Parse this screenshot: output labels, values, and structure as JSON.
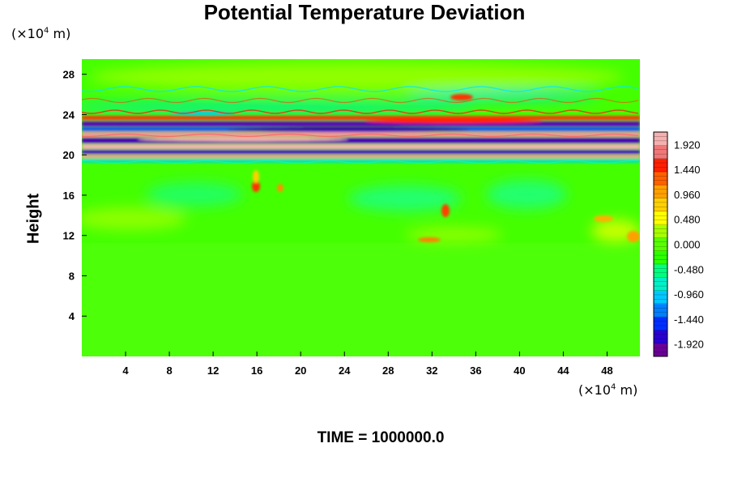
{
  "chart_data": {
    "type": "heatmap",
    "title": "Potential Temperature Deviation",
    "ylabel": "Height",
    "xlabel": "",
    "y_unit": {
      "pre": "(×10",
      "exp": "4",
      "post": " m)"
    },
    "x_unit": {
      "pre": "(×10",
      "exp": "4",
      "post": " m)"
    },
    "x_ticks": [
      "4",
      "8",
      "12",
      "16",
      "20",
      "24",
      "28",
      "32",
      "36",
      "40",
      "44",
      "48"
    ],
    "y_ticks": [
      "4",
      "8",
      "12",
      "16",
      "20",
      "24",
      "28"
    ],
    "xlim": [
      0,
      51
    ],
    "ylim": [
      0,
      29.5
    ],
    "colorbar": {
      "ticks": [
        "1.920",
        "1.440",
        "0.960",
        "0.480",
        "0.000",
        "-0.480",
        "-0.960",
        "-1.440",
        "-1.920"
      ],
      "range": [
        -2.16,
        2.16
      ],
      "colors": [
        "#6a0096",
        "#2a00d4",
        "#0030ff",
        "#0080ff",
        "#00c8ff",
        "#00f0c8",
        "#00ff80",
        "#2cff00",
        "#58ff00",
        "#a8ff00",
        "#ffff00",
        "#ffd000",
        "#ffa000",
        "#ff6000",
        "#ff2000",
        "#f07878",
        "#f5b0b0"
      ]
    },
    "annotation": "TIME = 1000000.0"
  }
}
